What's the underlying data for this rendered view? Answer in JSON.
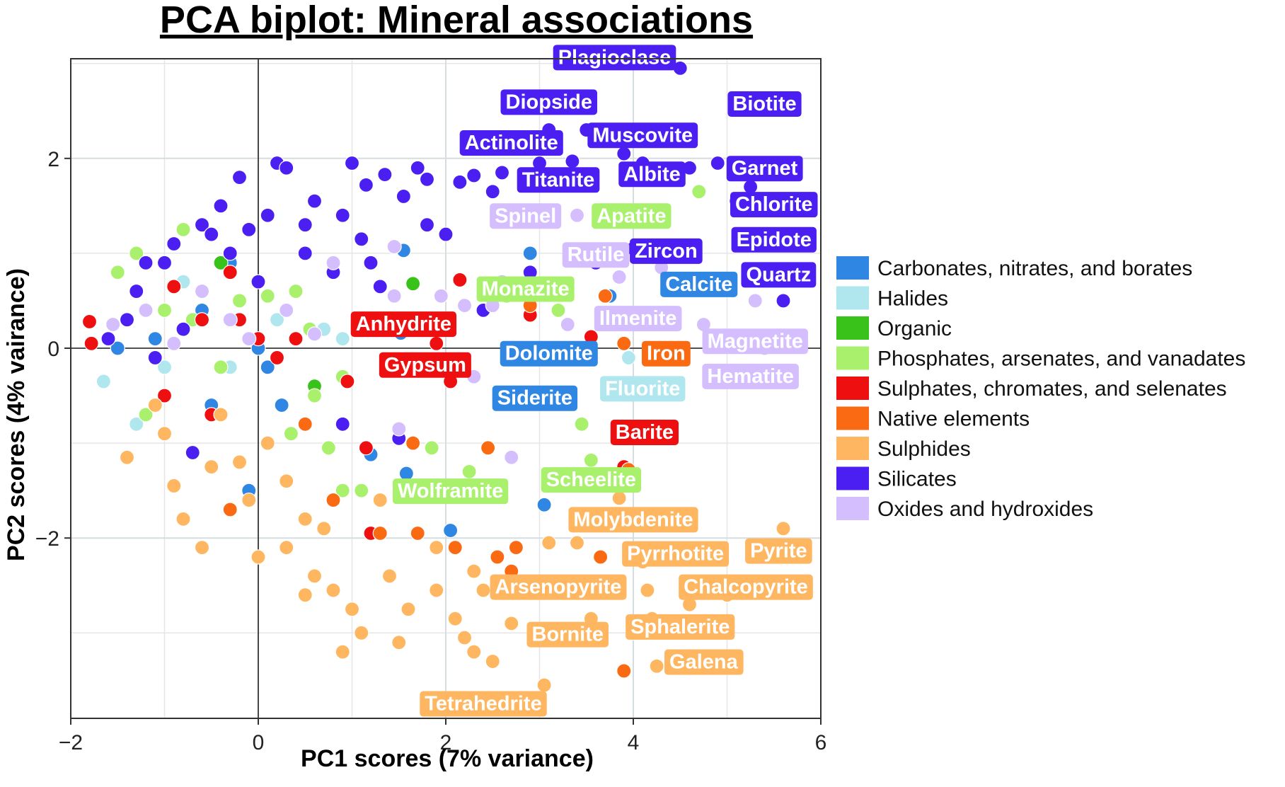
{
  "chart_data": {
    "type": "scatter",
    "title": "PCA biplot: Mineral associations",
    "xlabel": "PC1 scores (7% variance)",
    "ylabel": "PC2 scores (4% vairance)",
    "xlim": [
      -2.0,
      6.0
    ],
    "ylim": [
      -3.9,
      3.05
    ],
    "xticks": [
      -2,
      0,
      2,
      4,
      6
    ],
    "xtick_labels": [
      "−2",
      "0",
      "2",
      "4",
      "6"
    ],
    "yticks": [
      -2,
      0,
      2
    ],
    "ytick_labels": [
      "−2",
      "0",
      "2"
    ],
    "minor_xticks": [
      -1,
      1,
      3,
      5
    ],
    "minor_yticks": [
      -3,
      -1,
      1,
      3
    ],
    "grid": true,
    "reference_lines": {
      "x": 0,
      "y": 0
    },
    "legend_position": "right",
    "series": [
      {
        "name": "Carbonates, nitrates, and borates",
        "color": "#2f86e3",
        "points": [
          [
            -1.5,
            0.0
          ],
          [
            -1.1,
            0.1
          ],
          [
            -0.6,
            0.4
          ],
          [
            -0.3,
            0.9
          ],
          [
            0.0,
            0.0
          ],
          [
            -0.5,
            -0.6
          ],
          [
            0.1,
            -0.2
          ],
          [
            1.55,
            1.03
          ],
          [
            1.52,
            0.16
          ],
          [
            1.2,
            -1.12
          ],
          [
            1.58,
            -1.32
          ],
          [
            2.05,
            -1.92
          ],
          [
            3.05,
            -1.65
          ],
          [
            3.2,
            0.6
          ],
          [
            3.75,
            0.55
          ],
          [
            2.9,
            1.0
          ],
          [
            -0.1,
            -1.5
          ],
          [
            0.25,
            -0.6
          ]
        ]
      },
      {
        "name": "Halides",
        "color": "#b0e6ee",
        "points": [
          [
            -1.65,
            -0.35
          ],
          [
            -1.3,
            -0.8
          ],
          [
            -1.3,
            0.6
          ],
          [
            -1.0,
            -0.2
          ],
          [
            -0.3,
            -0.2
          ],
          [
            0.2,
            0.3
          ],
          [
            0.9,
            0.1
          ],
          [
            3.95,
            -0.1
          ],
          [
            -0.8,
            0.7
          ],
          [
            0.7,
            0.2
          ]
        ]
      },
      {
        "name": "Organic",
        "color": "#38c21a",
        "points": [
          [
            1.65,
            0.68
          ],
          [
            -0.9,
            0.65
          ],
          [
            -0.4,
            0.9
          ],
          [
            0.6,
            -0.4
          ]
        ]
      },
      {
        "name": "Phosphates, arsenates, and vanadates",
        "color": "#a9f16c",
        "points": [
          [
            -1.5,
            0.8
          ],
          [
            -1.3,
            1.0
          ],
          [
            -0.8,
            1.25
          ],
          [
            -1.0,
            0.4
          ],
          [
            -0.4,
            -0.2
          ],
          [
            0.1,
            0.55
          ],
          [
            0.55,
            0.2
          ],
          [
            0.9,
            -0.3
          ],
          [
            0.75,
            -1.05
          ],
          [
            1.1,
            -1.5
          ],
          [
            0.9,
            -1.5
          ],
          [
            1.85,
            -1.05
          ],
          [
            2.25,
            -1.3
          ],
          [
            2.65,
            0.55
          ],
          [
            3.2,
            0.4
          ],
          [
            3.45,
            -0.8
          ],
          [
            3.55,
            -1.18
          ],
          [
            4.7,
            1.65
          ],
          [
            -1.2,
            -0.7
          ],
          [
            0.35,
            -0.9
          ],
          [
            -0.2,
            0.5
          ],
          [
            0.6,
            -0.5
          ],
          [
            0.4,
            0.6
          ],
          [
            -0.7,
            0.3
          ]
        ]
      },
      {
        "name": "Sulphates, chromates, and selenates",
        "color": "#ee1010",
        "points": [
          [
            -1.8,
            0.28
          ],
          [
            -1.78,
            0.05
          ],
          [
            -1.0,
            -0.5
          ],
          [
            -0.9,
            0.65
          ],
          [
            -0.6,
            0.3
          ],
          [
            -0.3,
            0.8
          ],
          [
            0.0,
            0.1
          ],
          [
            0.4,
            0.1
          ],
          [
            0.95,
            -0.35
          ],
          [
            1.15,
            -1.05
          ],
          [
            1.2,
            -1.95
          ],
          [
            2.05,
            -0.35
          ],
          [
            2.15,
            0.72
          ],
          [
            1.9,
            0.05
          ],
          [
            3.55,
            0.12
          ],
          [
            3.9,
            -1.25
          ],
          [
            2.9,
            0.35
          ],
          [
            -0.5,
            -0.7
          ],
          [
            0.2,
            -0.1
          ],
          [
            -0.2,
            0.3
          ]
        ]
      },
      {
        "name": "Native elements",
        "color": "#fa6a12",
        "points": [
          [
            -0.3,
            -1.7
          ],
          [
            0.8,
            -1.6
          ],
          [
            1.3,
            -1.95
          ],
          [
            1.7,
            -1.95
          ],
          [
            2.1,
            -2.1
          ],
          [
            2.55,
            -2.2
          ],
          [
            2.7,
            -2.35
          ],
          [
            2.75,
            -2.1
          ],
          [
            2.9,
            0.45
          ],
          [
            3.7,
            0.55
          ],
          [
            3.95,
            -1.28
          ],
          [
            3.9,
            -3.4
          ],
          [
            3.9,
            0.05
          ],
          [
            3.65,
            -2.2
          ],
          [
            2.45,
            -1.05
          ],
          [
            1.65,
            -1.0
          ],
          [
            0.5,
            -0.8
          ]
        ]
      },
      {
        "name": "Sulphides",
        "color": "#ffb660",
        "points": [
          [
            -1.4,
            -1.15
          ],
          [
            -1.1,
            -0.6
          ],
          [
            -0.9,
            -1.45
          ],
          [
            -0.5,
            -1.25
          ],
          [
            -0.4,
            -0.7
          ],
          [
            -0.2,
            -1.2
          ],
          [
            0.1,
            -1.0
          ],
          [
            0.3,
            -1.4
          ],
          [
            0.5,
            -1.8
          ],
          [
            0.7,
            -1.9
          ],
          [
            0.3,
            -2.1
          ],
          [
            0.0,
            -2.2
          ],
          [
            0.8,
            -2.55
          ],
          [
            1.0,
            -2.75
          ],
          [
            1.1,
            -3.0
          ],
          [
            1.4,
            -2.4
          ],
          [
            1.5,
            -3.1
          ],
          [
            1.6,
            -2.75
          ],
          [
            1.9,
            -2.55
          ],
          [
            2.3,
            -2.35
          ],
          [
            2.4,
            -2.55
          ],
          [
            2.1,
            -2.85
          ],
          [
            2.2,
            -3.05
          ],
          [
            2.3,
            -3.2
          ],
          [
            2.7,
            -2.9
          ],
          [
            3.05,
            -3.55
          ],
          [
            3.1,
            -2.05
          ],
          [
            3.4,
            -2.05
          ],
          [
            3.55,
            -2.85
          ],
          [
            3.85,
            -1.58
          ],
          [
            4.1,
            -2.25
          ],
          [
            4.15,
            -2.55
          ],
          [
            4.2,
            -2.85
          ],
          [
            4.25,
            -3.35
          ],
          [
            4.6,
            -2.7
          ],
          [
            5.0,
            -2.6
          ],
          [
            5.6,
            -1.9
          ],
          [
            0.9,
            -3.2
          ],
          [
            0.6,
            -2.4
          ],
          [
            -0.6,
            -2.1
          ],
          [
            -0.8,
            -1.8
          ],
          [
            1.3,
            -1.6
          ],
          [
            1.9,
            -2.1
          ],
          [
            -0.1,
            -1.6
          ],
          [
            0.5,
            -2.6
          ],
          [
            2.5,
            -3.3
          ],
          [
            3.6,
            -3.05
          ],
          [
            4.0,
            -3.0
          ],
          [
            -1.0,
            -0.9
          ]
        ]
      },
      {
        "name": "Silicates",
        "color": "#4b1ff1",
        "points": [
          [
            -1.6,
            0.1
          ],
          [
            -1.3,
            0.6
          ],
          [
            -1.2,
            0.9
          ],
          [
            -0.9,
            1.1
          ],
          [
            -0.6,
            1.3
          ],
          [
            -0.3,
            1.0
          ],
          [
            -0.1,
            1.25
          ],
          [
            0.1,
            1.4
          ],
          [
            0.2,
            1.95
          ],
          [
            0.3,
            1.9
          ],
          [
            0.6,
            1.55
          ],
          [
            0.9,
            1.4
          ],
          [
            1.0,
            1.95
          ],
          [
            1.15,
            1.72
          ],
          [
            1.35,
            1.83
          ],
          [
            1.55,
            1.6
          ],
          [
            1.7,
            1.9
          ],
          [
            1.8,
            1.78
          ],
          [
            2.15,
            1.75
          ],
          [
            2.3,
            1.82
          ],
          [
            2.6,
            1.85
          ],
          [
            2.8,
            2.1
          ],
          [
            3.1,
            2.3
          ],
          [
            3.35,
            1.97
          ],
          [
            3.5,
            2.3
          ],
          [
            3.9,
            2.05
          ],
          [
            4.1,
            1.95
          ],
          [
            4.5,
            2.95
          ],
          [
            4.6,
            1.9
          ],
          [
            4.9,
            1.95
          ],
          [
            5.1,
            1.55
          ],
          [
            5.25,
            1.7
          ],
          [
            5.6,
            0.5
          ],
          [
            4.0,
            1.05
          ],
          [
            3.6,
            0.9
          ],
          [
            2.9,
            0.8
          ],
          [
            2.4,
            0.4
          ],
          [
            1.5,
            0.3
          ],
          [
            1.2,
            0.9
          ],
          [
            0.8,
            0.8
          ],
          [
            0.5,
            1.0
          ],
          [
            -0.5,
            1.2
          ],
          [
            -1.0,
            0.9
          ],
          [
            -1.4,
            0.3
          ],
          [
            -0.7,
            -1.1
          ],
          [
            0.9,
            -0.8
          ],
          [
            1.5,
            -0.95
          ],
          [
            1.8,
            1.3
          ],
          [
            2.0,
            1.2
          ],
          [
            2.5,
            1.65
          ],
          [
            3.0,
            1.95
          ],
          [
            -0.2,
            1.8
          ],
          [
            -0.4,
            1.5
          ],
          [
            0.5,
            1.3
          ],
          [
            1.1,
            1.15
          ],
          [
            1.3,
            0.65
          ],
          [
            -0.8,
            0.2
          ],
          [
            -1.1,
            -0.1
          ],
          [
            0.0,
            0.7
          ]
        ]
      },
      {
        "name": "Oxides and hydroxides",
        "color": "#d5befe",
        "points": [
          [
            -1.55,
            0.25
          ],
          [
            -1.2,
            0.4
          ],
          [
            -0.9,
            0.05
          ],
          [
            -0.6,
            0.6
          ],
          [
            -0.1,
            0.1
          ],
          [
            0.3,
            0.4
          ],
          [
            0.8,
            0.9
          ],
          [
            1.45,
            1.07
          ],
          [
            1.45,
            0.55
          ],
          [
            1.95,
            0.55
          ],
          [
            2.2,
            0.45
          ],
          [
            2.5,
            0.45
          ],
          [
            2.6,
            0.7
          ],
          [
            3.3,
            0.25
          ],
          [
            3.85,
            0.75
          ],
          [
            4.3,
            0.85
          ],
          [
            4.75,
            0.25
          ],
          [
            5.3,
            0.5
          ],
          [
            5.4,
            0.0
          ],
          [
            4.5,
            0.0
          ],
          [
            1.5,
            -0.85
          ],
          [
            2.7,
            -1.15
          ],
          [
            3.4,
            1.4
          ],
          [
            -0.3,
            0.3
          ],
          [
            0.6,
            0.15
          ],
          [
            1.8,
            0.3
          ],
          [
            2.3,
            -0.3
          ]
        ]
      }
    ],
    "labels": [
      {
        "text": "Plagioclase",
        "x": 3.8,
        "y": 3.07,
        "group": "Silicates"
      },
      {
        "text": "Diopside",
        "x": 3.1,
        "y": 2.6,
        "group": "Silicates"
      },
      {
        "text": "Biotite",
        "x": 5.4,
        "y": 2.58,
        "group": "Silicates"
      },
      {
        "text": "Muscovite",
        "x": 4.1,
        "y": 2.25,
        "group": "Silicates"
      },
      {
        "text": "Actinolite",
        "x": 2.7,
        "y": 2.17,
        "group": "Silicates"
      },
      {
        "text": "Garnet",
        "x": 5.4,
        "y": 1.9,
        "group": "Silicates"
      },
      {
        "text": "Titanite",
        "x": 3.2,
        "y": 1.78,
        "group": "Silicates"
      },
      {
        "text": "Albite",
        "x": 4.2,
        "y": 1.84,
        "group": "Silicates"
      },
      {
        "text": "Chlorite",
        "x": 5.5,
        "y": 1.52,
        "group": "Silicates"
      },
      {
        "text": "Spinel",
        "x": 2.85,
        "y": 1.4,
        "group": "Oxides and hydroxides"
      },
      {
        "text": "Apatite",
        "x": 3.98,
        "y": 1.4,
        "group": "Phosphates, arsenates, and vanadates"
      },
      {
        "text": "Epidote",
        "x": 5.5,
        "y": 1.15,
        "group": "Silicates"
      },
      {
        "text": "Rutile",
        "x": 3.6,
        "y": 0.99,
        "group": "Oxides and hydroxides"
      },
      {
        "text": "Zircon",
        "x": 4.35,
        "y": 1.03,
        "group": "Silicates"
      },
      {
        "text": "Quartz",
        "x": 5.55,
        "y": 0.78,
        "group": "Silicates"
      },
      {
        "text": "Calcite",
        "x": 4.7,
        "y": 0.68,
        "group": "Carbonates, nitrates, and borates"
      },
      {
        "text": "Monazite",
        "x": 2.85,
        "y": 0.63,
        "group": "Phosphates, arsenates, and vanadates"
      },
      {
        "text": "Ilmenite",
        "x": 4.05,
        "y": 0.32,
        "group": "Oxides and hydroxides"
      },
      {
        "text": "Anhydrite",
        "x": 1.55,
        "y": 0.26,
        "group": "Sulphates, chromates, and selenates"
      },
      {
        "text": "Magnetite",
        "x": 5.3,
        "y": 0.08,
        "group": "Oxides and hydroxides"
      },
      {
        "text": "Dolomite",
        "x": 3.1,
        "y": -0.05,
        "group": "Carbonates, nitrates, and borates"
      },
      {
        "text": "Iron",
        "x": 4.35,
        "y": -0.05,
        "group": "Native elements"
      },
      {
        "text": "Gypsum",
        "x": 1.78,
        "y": -0.17,
        "group": "Sulphates, chromates, and selenates"
      },
      {
        "text": "Hematite",
        "x": 5.25,
        "y": -0.29,
        "group": "Oxides and hydroxides"
      },
      {
        "text": "Fluorite",
        "x": 4.1,
        "y": -0.42,
        "group": "Halides"
      },
      {
        "text": "Siderite",
        "x": 2.95,
        "y": -0.52,
        "group": "Carbonates, nitrates, and borates"
      },
      {
        "text": "Barite",
        "x": 4.12,
        "y": -0.88,
        "group": "Sulphates, chromates, and selenates"
      },
      {
        "text": "Scheelite",
        "x": 3.55,
        "y": -1.38,
        "group": "Phosphates, arsenates, and vanadates"
      },
      {
        "text": "Wolframite",
        "x": 2.05,
        "y": -1.5,
        "group": "Phosphates, arsenates, and vanadates"
      },
      {
        "text": "Molybdenite",
        "x": 4.0,
        "y": -1.8,
        "group": "Sulphides"
      },
      {
        "text": "Pyrrhotite",
        "x": 4.45,
        "y": -2.16,
        "group": "Sulphides"
      },
      {
        "text": "Pyrite",
        "x": 5.55,
        "y": -2.13,
        "group": "Sulphides"
      },
      {
        "text": "Arsenopyrite",
        "x": 3.2,
        "y": -2.51,
        "group": "Sulphides"
      },
      {
        "text": "Chalcopyrite",
        "x": 5.2,
        "y": -2.51,
        "group": "Sulphides"
      },
      {
        "text": "Sphalerite",
        "x": 4.5,
        "y": -2.93,
        "group": "Sulphides"
      },
      {
        "text": "Bornite",
        "x": 3.3,
        "y": -3.01,
        "group": "Sulphides"
      },
      {
        "text": "Galena",
        "x": 4.75,
        "y": -3.3,
        "group": "Sulphides"
      },
      {
        "text": "Tetrahedrite",
        "x": 2.4,
        "y": -3.74,
        "group": "Sulphides"
      }
    ]
  }
}
